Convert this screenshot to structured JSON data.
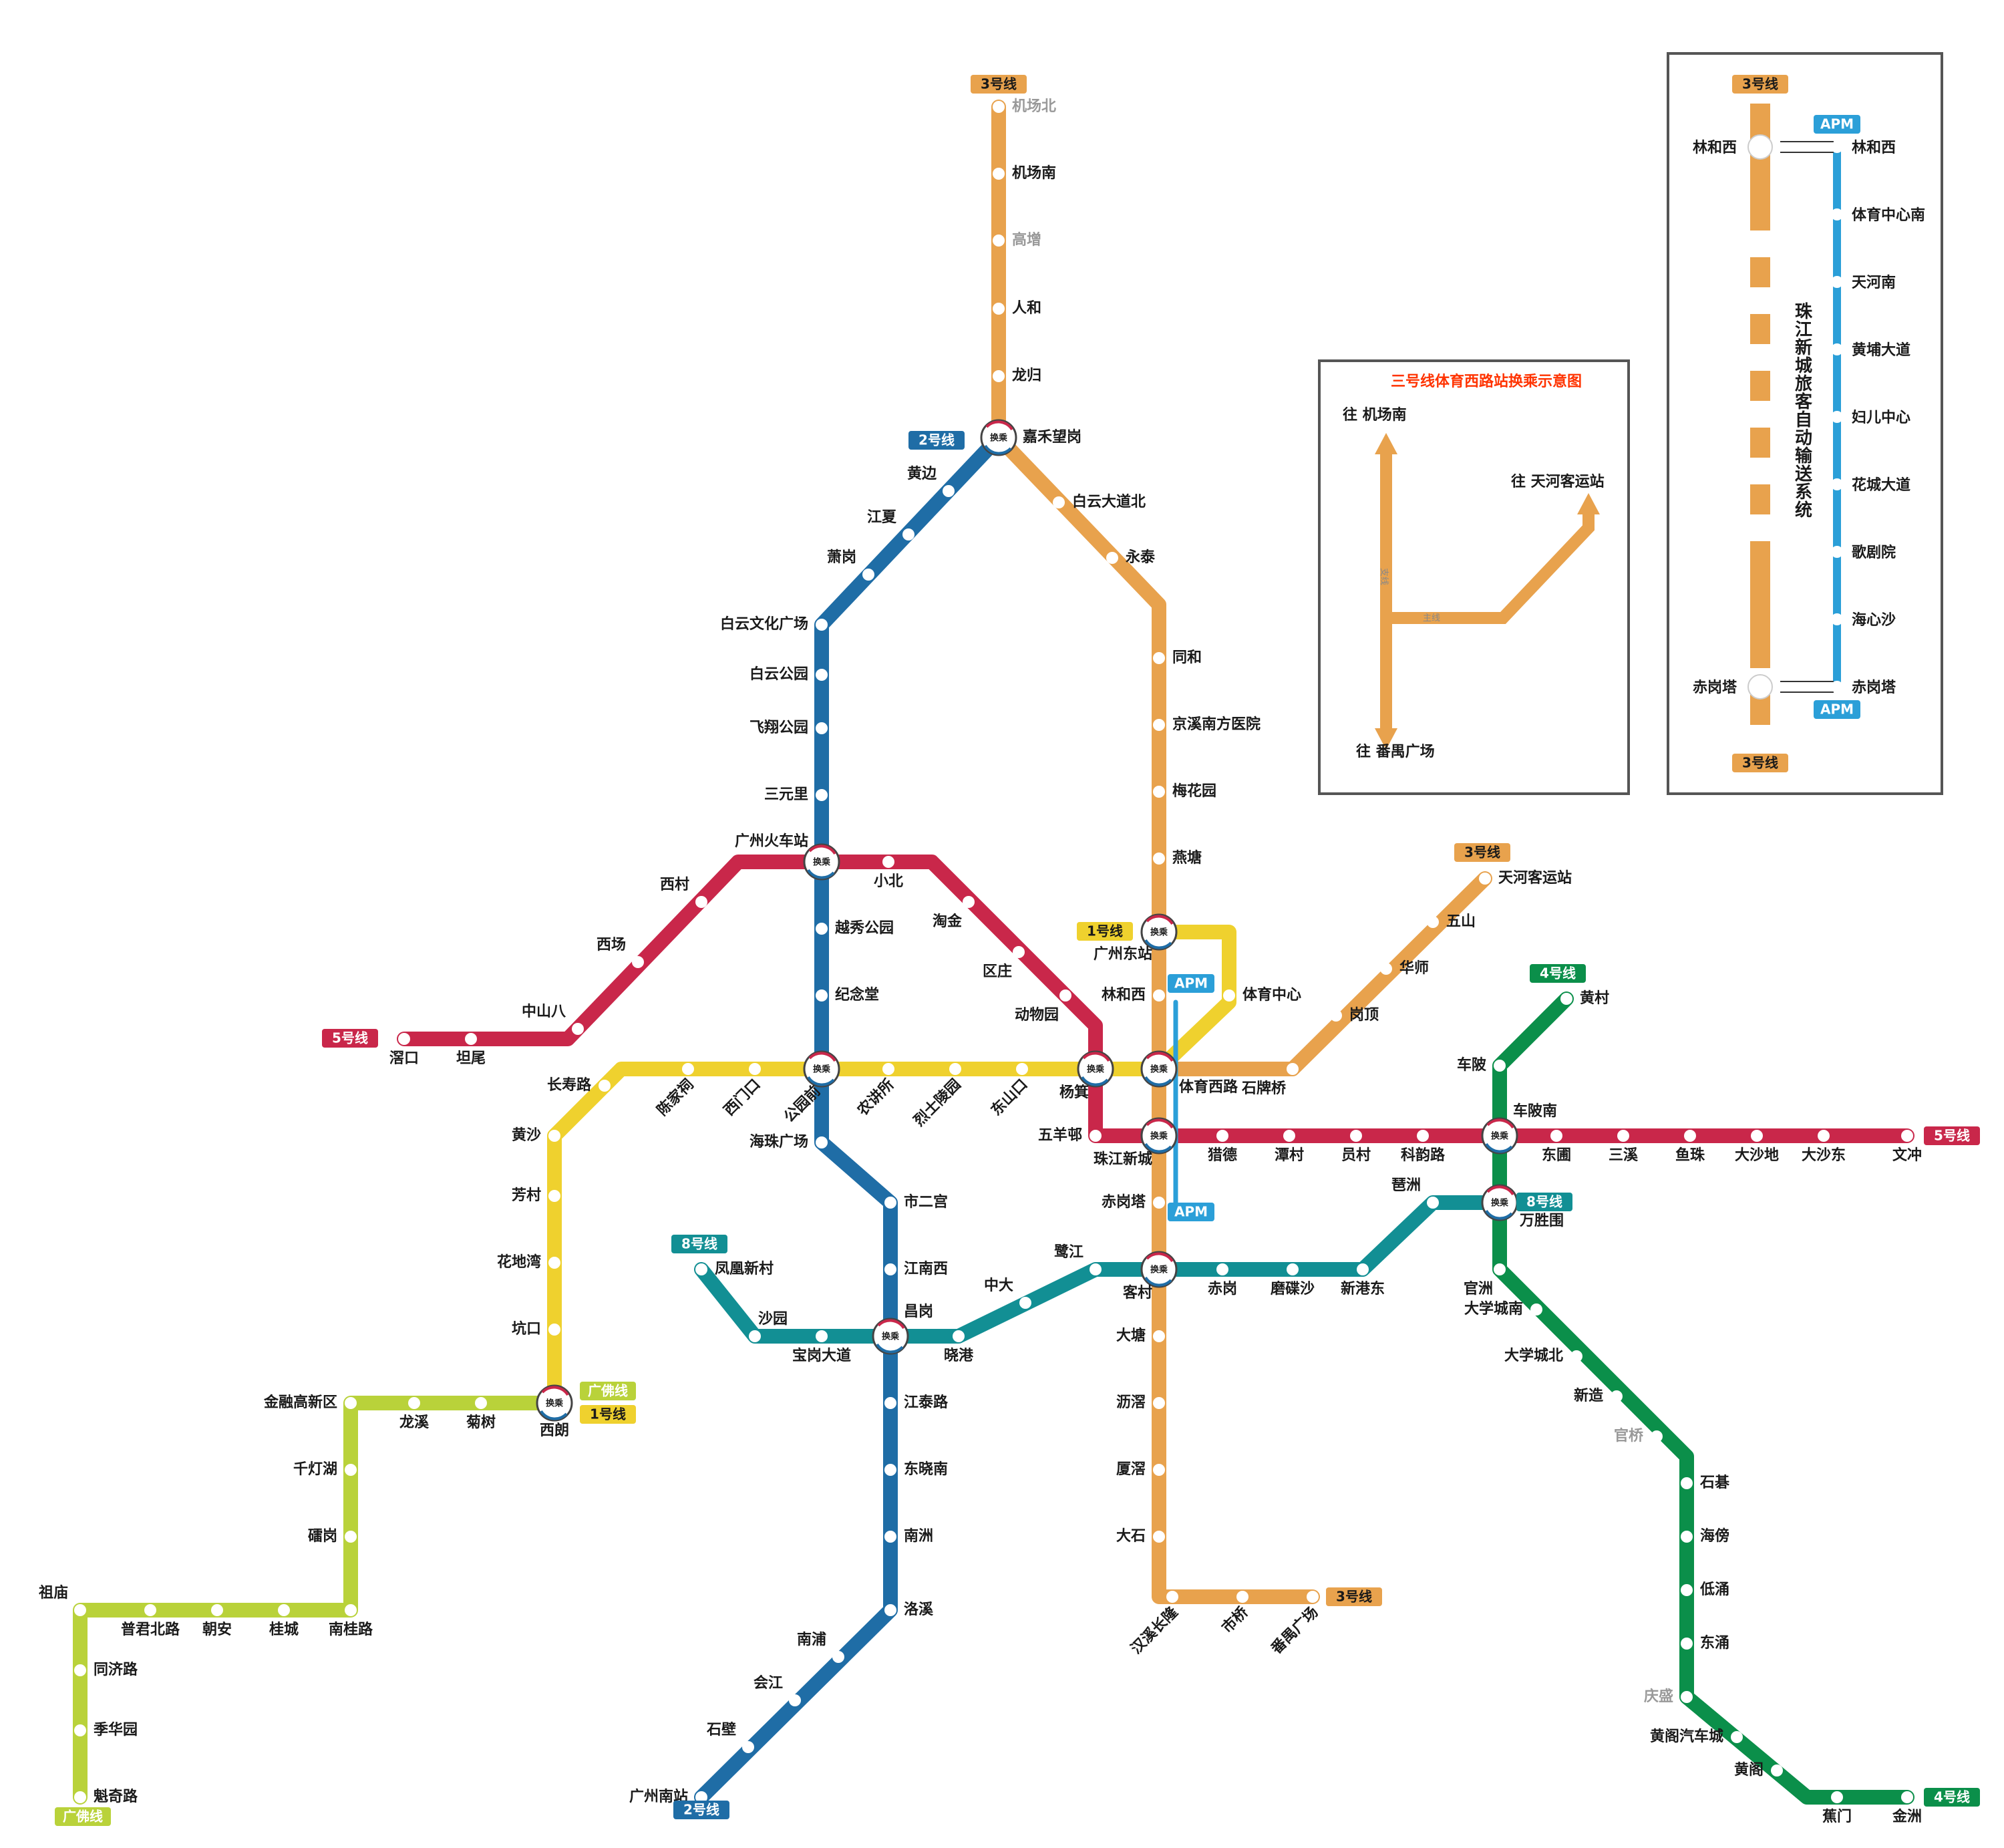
{
  "colors": {
    "line1": "#EFD12E",
    "line2": "#1F6DA6",
    "line3": "#E8A24D",
    "line4": "#0B8F4A",
    "line5": "#C9274A",
    "line8": "#128F94",
    "gf": "#B9D23A",
    "apm": "#2B9FD8"
  },
  "badges": {
    "l3_top": "3号线",
    "l2_top": "2号线",
    "l2_bottom": "2号线",
    "l5_left": "5号线",
    "l5_right": "5号线",
    "l1_top": "1号线",
    "l1_bottom": "1号线",
    "gf_top": "广佛线",
    "gf_bottom": "广佛线",
    "l8_left": "8号线",
    "l8_right": "8号线",
    "l4_top": "4号线",
    "l4_bottom": "4号线",
    "l3_right": "3号线",
    "l3_bottom": "3号线",
    "apm_top": "APM",
    "apm_bottom": "APM"
  },
  "transfer_mark": "换乘",
  "inset1": {
    "title": "三号线体育西路站换乘示意图",
    "to_north": "往 机场南",
    "to_east": "往 天河客运站",
    "to_south": "往 番禺广场",
    "branch": "支线",
    "main": "主线"
  },
  "inset2": {
    "badge_top": "3号线",
    "badge_bottom": "3号线",
    "apm_top": "APM",
    "apm_bottom": "APM",
    "vertical_title": "珠江新城旅客自动输送系统",
    "l3_station_top": "林和西",
    "l3_station_bottom": "赤岗塔",
    "apm_stations": [
      "林和西",
      "体育中心南",
      "天河南",
      "黄埔大道",
      "妇儿中心",
      "花城大道",
      "歌剧院",
      "海心沙",
      "赤岗塔"
    ]
  },
  "stations": {
    "jichangbei": "机场北",
    "jichangnan": "机场南",
    "gaozeng": "高增",
    "renhe": "人和",
    "longgui": "龙归",
    "jiahewanggang": "嘉禾望岗",
    "baiyundadaobei": "白云大道北",
    "yongtai": "永泰",
    "tonghe": "同和",
    "jingxi": "京溪南方医院",
    "meihuayuan": "梅花园",
    "yantang": "燕塘",
    "guangzhoudongzhan": "广州东站",
    "linhexi": "林和西",
    "tiyuzhongxin": "体育中心",
    "tiyuxilu": "体育西路",
    "shipaiqiao": "石牌桥",
    "gangding": "岗顶",
    "huashi": "华师",
    "wushan": "五山",
    "tianhekeyunzhan": "天河客运站",
    "zhujiangxincheng": "珠江新城",
    "chigangta": "赤岗塔",
    "kecun": "客村",
    "datang": "大塘",
    "lijiao": "沥滘",
    "shaxiao": "厦滘",
    "dashi": "大石",
    "hanxi": "汉溪长隆",
    "shiqiao": "市桥",
    "panyuguangchang": "番禺广场",
    "huangbian": "黄边",
    "jiangxia": "江夏",
    "xiaogang": "萧岗",
    "baiyunwenhua": "白云文化广场",
    "baiyungongyuan": "白云公园",
    "feixiang": "飞翔公园",
    "sanyuanli": "三元里",
    "guangzhouhuochezhan": "广州火车站",
    "yuexiugongyuan": "越秀公园",
    "jiniantang": "纪念堂",
    "gongyuanqian": "公园前",
    "haizhuguangchang": "海珠广场",
    "shiergong": "市二宫",
    "jiangnanxi": "江南西",
    "changgang": "昌岗",
    "jiangtailu": "江泰路",
    "dongxiaonan": "东晓南",
    "nanzhou": "南洲",
    "luoxi": "洛溪",
    "nanpu": "南浦",
    "huijiang": "会江",
    "shibi": "石壁",
    "guangzhounanzhan": "广州南站",
    "jiaokou": "滘口",
    "tanwei": "坦尾",
    "zhongshanba": "中山八",
    "xichang": "西场",
    "xicun": "西村",
    "xiaobei": "小北",
    "taojin": "淘金",
    "quzhuang": "区庄",
    "dongwuyuan": "动物园",
    "yangji": "杨箕",
    "wuyangcun": "五羊邨",
    "liede": "猎德",
    "tancun": "潭村",
    "yuancun": "员村",
    "keyunlu": "科韵路",
    "chebeinan": "车陂南",
    "dongpu": "东圃",
    "sanxi": "三溪",
    "yuzhu": "鱼珠",
    "dashadi": "大沙地",
    "dashadong": "大沙东",
    "wenchong": "文冲",
    "changshoulu": "长寿路",
    "chenjiaci": "陈家祠",
    "ximenkou": "西门口",
    "nongjiangsuo": "农讲所",
    "lieshilingyuan": "烈士陵园",
    "dongshankou": "东山口",
    "huangsha": "黄沙",
    "fangcun": "芳村",
    "huadiwan": "花地湾",
    "kengkou": "坑口",
    "xilang": "西朗",
    "fenghuangxincun": "凤凰新村",
    "shayuan": "沙园",
    "baogangdadao": "宝岗大道",
    "xiaogang8": "晓港",
    "zhongda": "中大",
    "lujiang": "鹭江",
    "chigang": "赤岗",
    "modiesha": "磨碟沙",
    "xingangdong": "新港东",
    "pazhou": "琶洲",
    "wanshengwei": "万胜围",
    "huangcun": "黄村",
    "chebei": "车陂",
    "guanzhou": "官洲",
    "daxuechengnan": "大学城南",
    "daxuechengbei": "大学城北",
    "xinzao": "新造",
    "guanqiao": "官桥",
    "shiqi": "石碁",
    "haibang": "海傍",
    "dichong": "低涌",
    "dongchong": "东涌",
    "qingsheng": "庆盛",
    "huangge_qiche": "黄阁汽车城",
    "huangge": "黄阁",
    "jiaomen": "蕉门",
    "jinzhou": "金洲",
    "jinronggaoxin": "金融高新区",
    "longxi": "龙溪",
    "jushu": "菊树",
    "qiandenghu": "千灯湖",
    "leigang": "礌岗",
    "nanguilu": "南桂路",
    "guicheng": "桂城",
    "chaoan": "朝安",
    "pujunbeilu": "普君北路",
    "zumiao": "祖庙",
    "tongjilu": "同济路",
    "jihuayuan": "季华园",
    "kuiqilu": "魁奇路"
  }
}
